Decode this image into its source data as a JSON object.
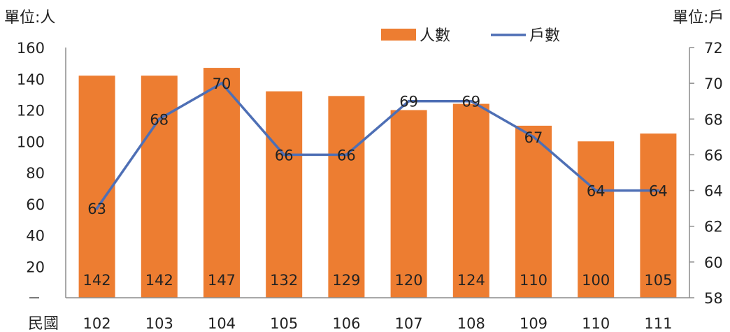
{
  "chart_data": {
    "type": "bar+line",
    "left_unit_label": "單位:人",
    "right_unit_label": "單位:戶",
    "x_axis_prefix": "民國",
    "categories": [
      "102",
      "103",
      "104",
      "105",
      "106",
      "107",
      "108",
      "109",
      "110",
      "111"
    ],
    "left_axis": {
      "ylim": [
        0,
        160
      ],
      "ticks": [
        "",
        "20",
        "40",
        "60",
        "80",
        "100",
        "120",
        "140",
        "160"
      ]
    },
    "right_axis": {
      "ylim": [
        58,
        72
      ],
      "ticks": [
        "58",
        "60",
        "62",
        "64",
        "66",
        "68",
        "70",
        "72"
      ]
    },
    "series": [
      {
        "name": "人數",
        "kind": "bar",
        "axis": "left",
        "color": "#ED7D31",
        "values": [
          142,
          142,
          147,
          132,
          129,
          120,
          124,
          110,
          100,
          105
        ]
      },
      {
        "name": "戶數",
        "kind": "line",
        "axis": "right",
        "color": "#4E6FB5",
        "values": [
          63,
          68,
          70,
          66,
          66,
          69,
          69,
          67,
          64,
          64
        ]
      }
    ],
    "legend_position": "top-center",
    "grid": false
  }
}
